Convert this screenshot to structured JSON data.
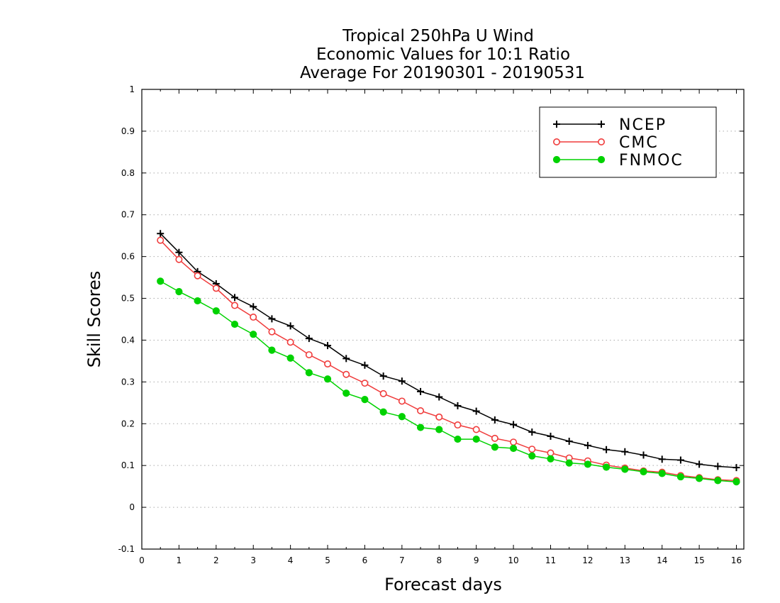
{
  "chart_data": {
    "type": "line",
    "title": [
      "Tropical 250hPa U Wind",
      "Economic Values for 10:1 Ratio",
      "Average For 20190301 - 20190531"
    ],
    "xlabel": "Forecast days",
    "ylabel": "Skill Scores",
    "xlim": [
      0,
      16.2
    ],
    "ylim": [
      -0.1,
      1
    ],
    "xticks": [
      0,
      1,
      2,
      3,
      4,
      5,
      6,
      7,
      8,
      9,
      10,
      11,
      12,
      13,
      14,
      15,
      16
    ],
    "yticks": [
      -0.1,
      0,
      0.1,
      0.2,
      0.3,
      0.4,
      0.5,
      0.6,
      0.7,
      0.8,
      0.9,
      1
    ],
    "ytick_labels": [
      "-0.1",
      "0",
      "0.1",
      "0.2",
      "0.3",
      "0.4",
      "0.5",
      "0.6",
      "0.7",
      "0.8",
      "0.9",
      "1"
    ],
    "grid": "horizontal dotted",
    "legend_position": "top-right",
    "x": [
      0.5,
      1,
      1.5,
      2,
      2.5,
      3,
      3.5,
      4,
      4.5,
      5,
      5.5,
      6,
      6.5,
      7,
      7.5,
      8,
      8.5,
      9,
      9.5,
      10,
      10.5,
      11,
      11.5,
      12,
      12.5,
      13,
      13.5,
      14,
      14.5,
      15,
      15.5,
      16
    ],
    "series": [
      {
        "name": "NCEP",
        "color": "#000000",
        "marker": "plus",
        "values": [
          0.655,
          0.61,
          0.564,
          0.535,
          0.502,
          0.48,
          0.451,
          0.434,
          0.404,
          0.387,
          0.356,
          0.34,
          0.314,
          0.302,
          0.277,
          0.264,
          0.243,
          0.23,
          0.209,
          0.198,
          0.18,
          0.17,
          0.158,
          0.148,
          0.138,
          0.133,
          0.125,
          0.115,
          0.113,
          0.103,
          0.098,
          0.095
        ]
      },
      {
        "name": "CMC",
        "color": "#f03c3c",
        "marker": "open-circle",
        "values": [
          0.639,
          0.593,
          0.554,
          0.524,
          0.483,
          0.455,
          0.42,
          0.395,
          0.365,
          0.343,
          0.318,
          0.297,
          0.272,
          0.254,
          0.231,
          0.216,
          0.197,
          0.186,
          0.165,
          0.156,
          0.139,
          0.13,
          0.118,
          0.111,
          0.101,
          0.094,
          0.087,
          0.084,
          0.076,
          0.071,
          0.066,
          0.064
        ]
      },
      {
        "name": "FNMOC",
        "color": "#00d200",
        "marker": "filled-circle",
        "values": [
          0.541,
          0.516,
          0.494,
          0.47,
          0.438,
          0.414,
          0.376,
          0.357,
          0.322,
          0.307,
          0.273,
          0.258,
          0.228,
          0.217,
          0.191,
          0.186,
          0.163,
          0.163,
          0.144,
          0.141,
          0.123,
          0.116,
          0.106,
          0.103,
          0.096,
          0.091,
          0.085,
          0.081,
          0.073,
          0.069,
          0.064,
          0.061
        ]
      }
    ]
  }
}
